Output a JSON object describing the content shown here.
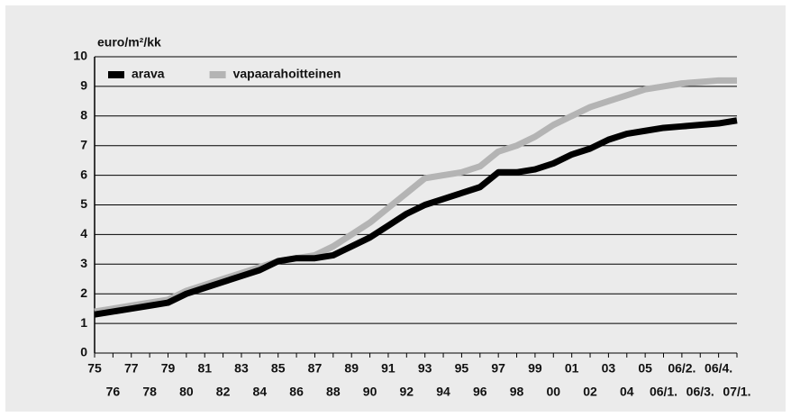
{
  "chart_data": {
    "type": "line",
    "y_label": "euro/m²/kk",
    "categories": [
      "75",
      "76",
      "77",
      "78",
      "79",
      "80",
      "81",
      "82",
      "83",
      "84",
      "85",
      "86",
      "87",
      "88",
      "89",
      "90",
      "91",
      "92",
      "93",
      "94",
      "95",
      "96",
      "97",
      "98",
      "99",
      "00",
      "01",
      "02",
      "03",
      "04",
      "05",
      "06/1.",
      "06/2.",
      "06/3.",
      "06/4.",
      "07/1."
    ],
    "series": [
      {
        "name": "vapaarahoitteinen",
        "color": "#b4b4b4",
        "values": [
          1.4,
          1.5,
          1.6,
          1.7,
          1.8,
          2.1,
          2.3,
          2.5,
          2.7,
          2.9,
          3.1,
          3.2,
          3.3,
          3.6,
          4.0,
          4.4,
          4.9,
          5.4,
          5.9,
          6.0,
          6.1,
          6.3,
          6.8,
          7.0,
          7.3,
          7.7,
          8.0,
          8.3,
          8.5,
          8.7,
          8.9,
          9.0,
          9.1,
          9.15,
          9.2,
          9.2
        ]
      },
      {
        "name": "arava",
        "color": "#000000",
        "values": [
          1.3,
          1.4,
          1.5,
          1.6,
          1.7,
          2.0,
          2.2,
          2.4,
          2.6,
          2.8,
          3.1,
          3.2,
          3.2,
          3.3,
          3.6,
          3.9,
          4.3,
          4.7,
          5.0,
          5.2,
          5.4,
          5.6,
          6.1,
          6.1,
          6.2,
          6.4,
          6.7,
          6.9,
          7.2,
          7.4,
          7.5,
          7.6,
          7.65,
          7.7,
          7.75,
          7.85
        ]
      }
    ],
    "ylim": [
      0,
      10
    ],
    "yticks": [
      0,
      1,
      2,
      3,
      4,
      5,
      6,
      7,
      8,
      9,
      10
    ],
    "grid": true,
    "legend": "top-left"
  }
}
